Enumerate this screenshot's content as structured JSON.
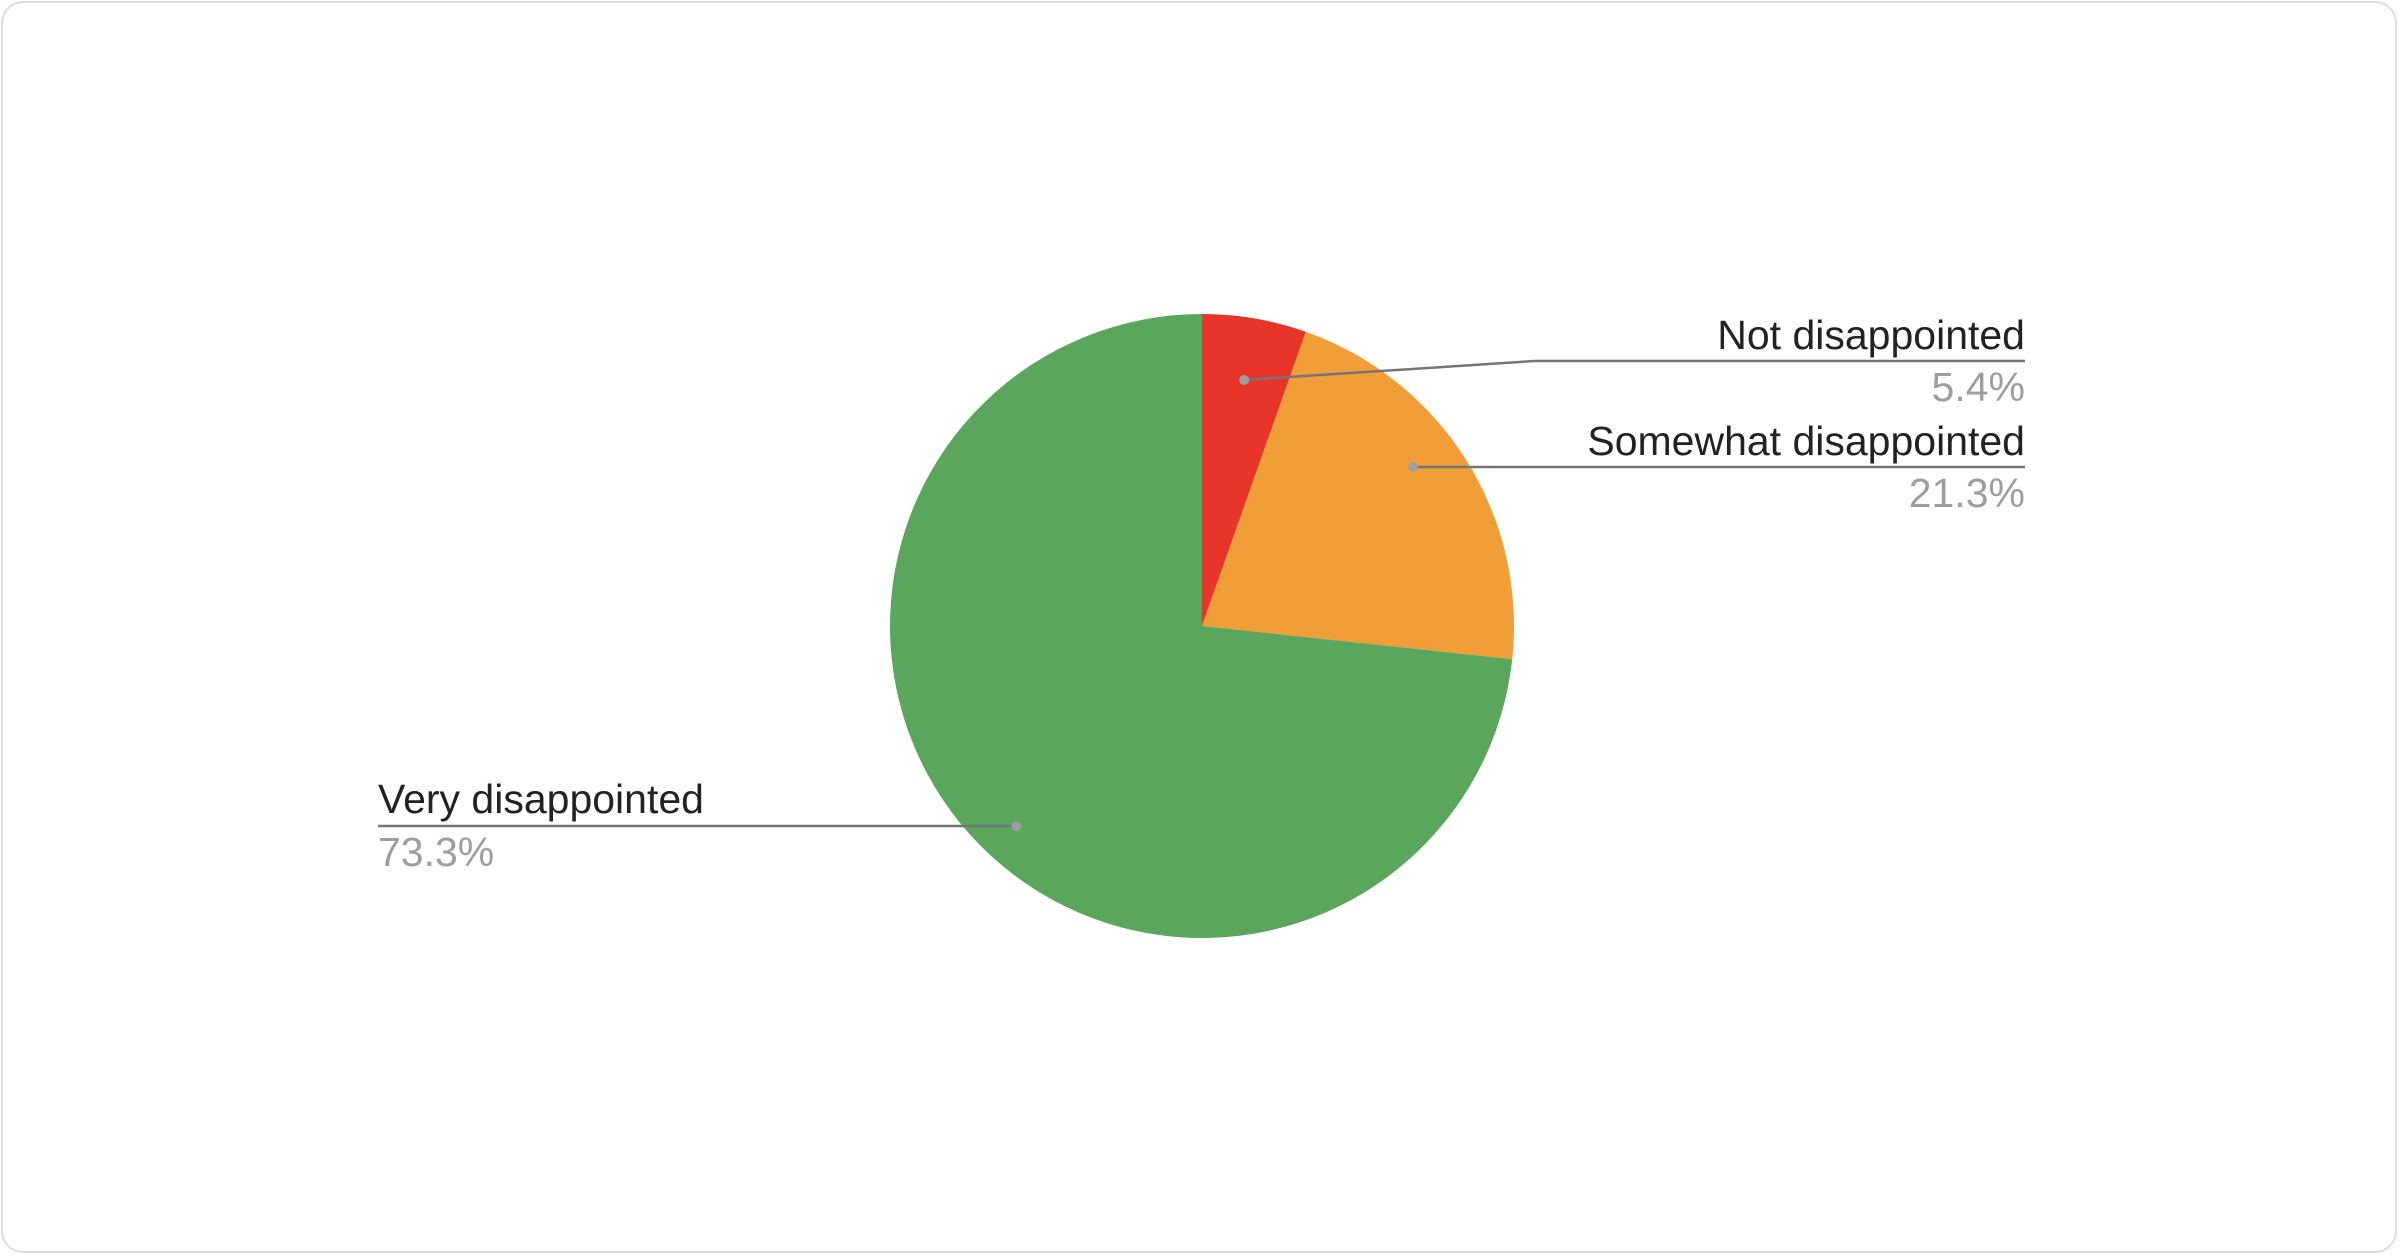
{
  "chart_data": {
    "type": "pie",
    "title": "",
    "slices": [
      {
        "label": "Not disappointed",
        "value": 5.4,
        "display": "5.4%",
        "color": "#e8352a"
      },
      {
        "label": "Somewhat disappointed",
        "value": 21.3,
        "display": "21.3%",
        "color": "#f29e38"
      },
      {
        "label": "Very disappointed",
        "value": 73.3,
        "display": "73.3%",
        "color": "#59a65c"
      }
    ],
    "start_angle_deg": 0,
    "direction": "clockwise",
    "legend": "labeled leader lines"
  }
}
